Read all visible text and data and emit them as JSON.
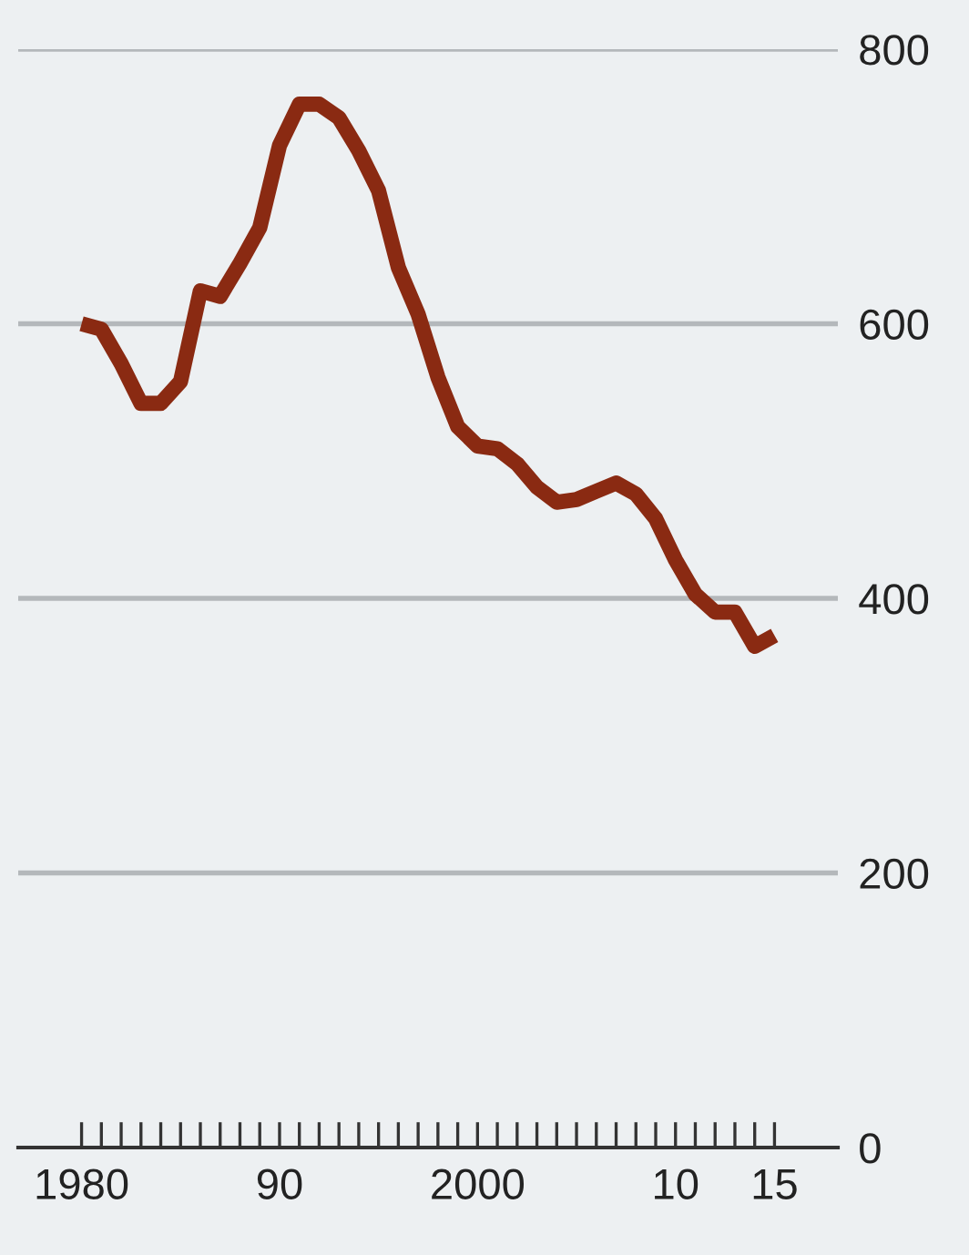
{
  "chart_data": {
    "type": "line",
    "x": [
      1980,
      1981,
      1982,
      1983,
      1984,
      1985,
      1986,
      1987,
      1988,
      1989,
      1990,
      1991,
      1992,
      1993,
      1994,
      1995,
      1996,
      1997,
      1998,
      1999,
      2000,
      2001,
      2002,
      2003,
      2004,
      2005,
      2006,
      2007,
      2008,
      2009,
      2010,
      2011,
      2012,
      2013,
      2014,
      2015
    ],
    "series": [
      {
        "color": "#8a2a12",
        "values": [
          600,
          596,
          571,
          542,
          542,
          558,
          624,
          620,
          644,
          670,
          730,
          760,
          760,
          750,
          726,
          697,
          641,
          607,
          561,
          525,
          511,
          509,
          498,
          481,
          470,
          472,
          478,
          484,
          476,
          458,
          428,
          403,
          390,
          390,
          365,
          373
        ]
      }
    ],
    "xlim": [
      1976.8,
      2018.2
    ],
    "xticks": [
      {
        "value": 1980,
        "label": "1980"
      },
      {
        "value": 1981,
        "label": null
      },
      {
        "value": 1982,
        "label": null
      },
      {
        "value": 1983,
        "label": null
      },
      {
        "value": 1984,
        "label": null
      },
      {
        "value": 1985,
        "label": null
      },
      {
        "value": 1986,
        "label": null
      },
      {
        "value": 1987,
        "label": null
      },
      {
        "value": 1988,
        "label": null
      },
      {
        "value": 1989,
        "label": null
      },
      {
        "value": 1990,
        "label": "90"
      },
      {
        "value": 1991,
        "label": null
      },
      {
        "value": 1992,
        "label": null
      },
      {
        "value": 1993,
        "label": null
      },
      {
        "value": 1994,
        "label": null
      },
      {
        "value": 1995,
        "label": null
      },
      {
        "value": 1996,
        "label": null
      },
      {
        "value": 1997,
        "label": null
      },
      {
        "value": 1998,
        "label": null
      },
      {
        "value": 1999,
        "label": null
      },
      {
        "value": 2000,
        "label": "2000"
      },
      {
        "value": 2001,
        "label": null
      },
      {
        "value": 2002,
        "label": null
      },
      {
        "value": 2003,
        "label": null
      },
      {
        "value": 2004,
        "label": null
      },
      {
        "value": 2005,
        "label": null
      },
      {
        "value": 2006,
        "label": null
      },
      {
        "value": 2007,
        "label": null
      },
      {
        "value": 2008,
        "label": null
      },
      {
        "value": 2009,
        "label": null
      },
      {
        "value": 2010,
        "label": "10"
      },
      {
        "value": 2011,
        "label": null
      },
      {
        "value": 2012,
        "label": null
      },
      {
        "value": 2013,
        "label": null
      },
      {
        "value": 2014,
        "label": null
      },
      {
        "value": 2015,
        "label": "15"
      }
    ],
    "ylim": [
      0,
      800
    ],
    "yticks": [
      0,
      200,
      400,
      600,
      800
    ],
    "grid": "y",
    "line_style": "solid",
    "marker": "none"
  }
}
